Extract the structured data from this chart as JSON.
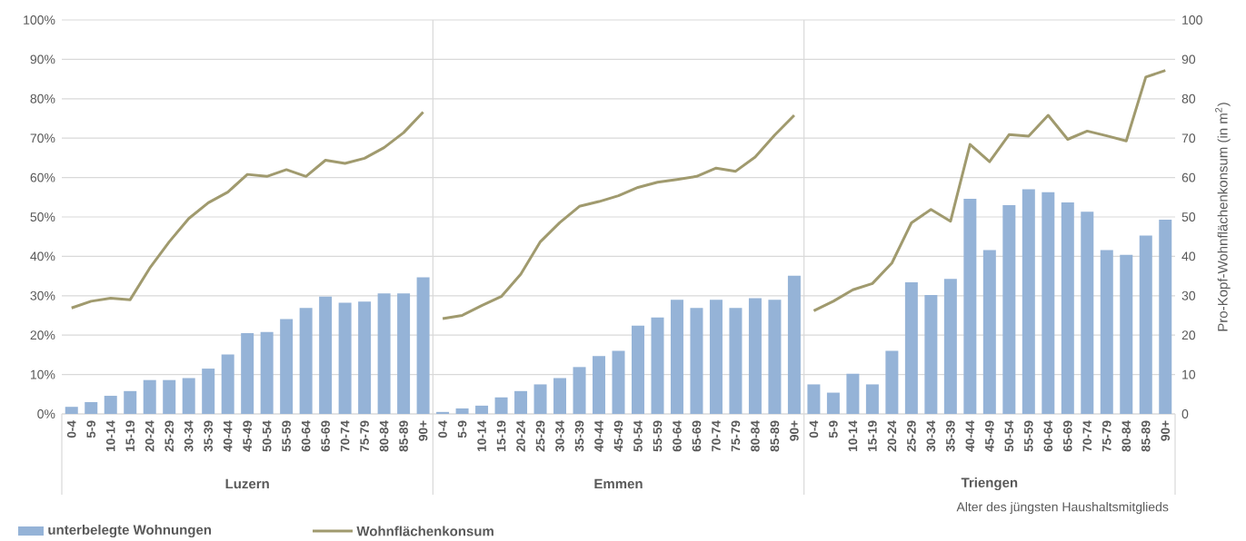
{
  "chart_data": {
    "type": "bar",
    "categories": [
      "0-4",
      "5-9",
      "10-14",
      "15-19",
      "20-24",
      "25-29",
      "30-34",
      "35-39",
      "40-44",
      "45-49",
      "50-54",
      "55-59",
      "60-64",
      "65-69",
      "70-74",
      "75-79",
      "80-84",
      "85-89",
      "90+",
      "0-4",
      "5-9",
      "10-14",
      "15-19",
      "20-24",
      "25-29",
      "30-34",
      "35-39",
      "40-44",
      "45-49",
      "50-54",
      "55-59",
      "60-64",
      "65-69",
      "70-74",
      "75-79",
      "80-84",
      "85-89",
      "90+",
      "0-4",
      "5-9",
      "10-14",
      "15-19",
      "20-24",
      "25-29",
      "30-34",
      "35-39",
      "40-44",
      "45-49",
      "50-54",
      "55-59",
      "60-64",
      "65-69",
      "70-74",
      "75-79",
      "80-84",
      "85-89",
      "90+"
    ],
    "xlabel": "Alter des jüngsten Haushaltsmitglieds",
    "y2label": "Pro-Kopf-Wohnflächenkonsum (in m$^{2}$)",
    "annotations": [
      "Luzern",
      "Emmen",
      "Triengen"
    ],
    "series": [
      {
        "name": "unterbelegte Wohnungen",
        "color": "#95b3d7",
        "values": [
          1.8,
          3,
          4.6,
          5.8,
          8.6,
          8.6,
          9.1,
          11.5,
          15.1,
          20.5,
          20.8,
          24.1,
          26.9,
          29.8,
          28.2,
          28.5,
          30.6,
          30.6,
          34.7,
          0.5,
          1.4,
          2.1,
          4.2,
          5.8,
          7.5,
          9.1,
          11.9,
          14.7,
          16,
          22.4,
          24.5,
          29,
          26.9,
          29,
          26.9,
          29.4,
          29,
          35.1,
          7.5,
          5.4,
          10.2,
          7.5,
          16,
          33.4,
          30.2,
          34.3,
          54.6,
          41.6,
          53,
          57,
          56.3,
          53.7,
          51.3,
          41.6,
          40.4,
          45.3,
          49.3
        ]
      },
      {
        "name": "Wohnflächenkonsum",
        "type": "line",
        "axis": "y2",
        "color": "#a09a6e",
        "values": [
          26.9,
          28.6,
          29.4,
          29,
          37,
          43.7,
          49.6,
          53.6,
          56.3,
          60.8,
          60.3,
          62,
          60.3,
          64.4,
          63.6,
          64.9,
          67.6,
          71.4,
          76.6,
          24.2,
          25,
          27.5,
          29.8,
          35.5,
          43.7,
          48.6,
          52.7,
          53.9,
          55.4,
          57.5,
          58.8,
          59.5,
          60.3,
          62.4,
          61.6,
          65.2,
          70.8,
          75.8,
          26.2,
          28.6,
          31.5,
          33.1,
          38.3,
          48.5,
          51.9,
          48.9,
          68.4,
          64,
          70.9,
          70.5,
          75.8,
          69.7,
          71.8,
          70.6,
          69.3,
          85.5,
          87.2
        ]
      }
    ],
    "ylim": [
      0,
      100
    ],
    "yticks": [
      {
        "value": 0,
        "label": "0%"
      },
      {
        "value": 10,
        "label": "10%"
      },
      {
        "value": 20,
        "label": "20%"
      },
      {
        "value": 30,
        "label": "30%"
      },
      {
        "value": 40,
        "label": "40%"
      },
      {
        "value": 50,
        "label": "50%"
      },
      {
        "value": 60,
        "label": "60%"
      },
      {
        "value": 70,
        "label": "70%"
      },
      {
        "value": 80,
        "label": "80%"
      },
      {
        "value": 90,
        "label": "90%"
      },
      {
        "value": 100,
        "label": "100%"
      }
    ],
    "y2lim": [
      0,
      100
    ],
    "y2ticks": [
      0,
      10,
      20,
      30,
      40,
      50,
      60,
      70,
      80,
      90,
      100
    ],
    "grid": "y",
    "legend": "bottom left"
  }
}
